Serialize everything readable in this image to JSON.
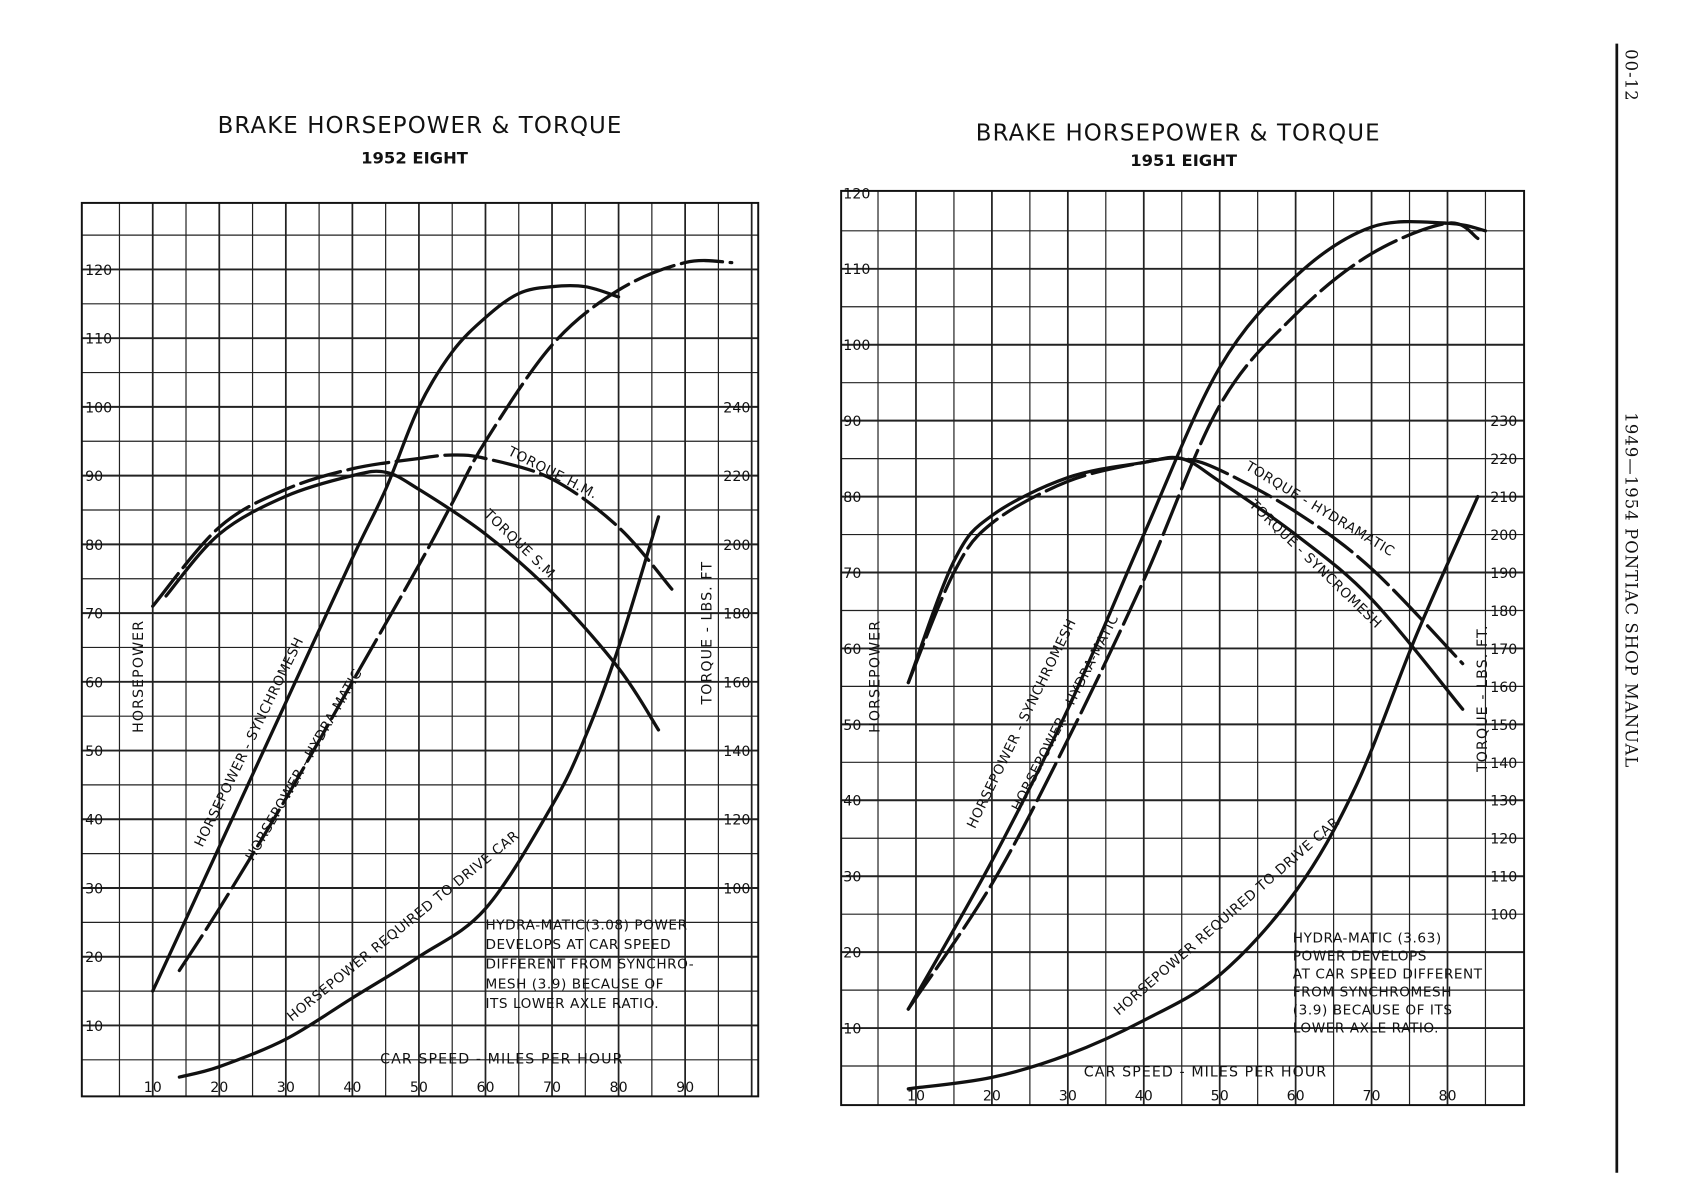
{
  "page": {
    "page_number": "00-12",
    "running_title": "1949—1954 PONTIAC SHOP MANUAL"
  },
  "chart_data": [
    {
      "type": "line",
      "title": "BRAKE HORSEPOWER & TORQUE",
      "subtitle": "1952 EIGHT",
      "xlabel": "CAR SPEED - MILES PER HOUR",
      "ylabel": "HORSEPOWER",
      "y2label": "TORQUE - LBS. FT",
      "xlim": [
        0,
        100
      ],
      "ylim": [
        0,
        130
      ],
      "xticks": [
        "10",
        "20",
        "30",
        "40",
        "50",
        "60",
        "70",
        "80",
        "90"
      ],
      "yticks": [
        "10",
        "20",
        "30",
        "40",
        "50",
        "60",
        "70",
        "80",
        "90",
        "100",
        "110",
        "120"
      ],
      "y2ticks": [
        "100",
        "120",
        "140",
        "160",
        "180",
        "200",
        "220",
        "240"
      ],
      "grid": true,
      "note": [
        "HYDRA-MATIC(3.08) POWER",
        "DEVELOPS AT CAR SPEED",
        "DIFFERENT FROM SYNCHRO-",
        "MESH (3.9) BECAUSE OF",
        "ITS  LOWER AXLE RATIO."
      ],
      "series": [
        {
          "name": "HORSEPOWER - SYNCHROMESH",
          "axis": "horsepower",
          "style": "solid",
          "x": [
            10,
            20,
            30,
            40,
            45,
            50,
            55,
            60,
            65,
            70,
            75,
            80
          ],
          "y": [
            15,
            36,
            57,
            78,
            88,
            100,
            108,
            113,
            116.5,
            117.5,
            117.5,
            116
          ]
        },
        {
          "name": "HORSEPOWER - HYDRA-MATIC",
          "axis": "horsepower",
          "style": "dashed",
          "x": [
            14,
            20,
            30,
            40,
            50,
            55,
            60,
            70,
            80,
            90,
            97
          ],
          "y": [
            18,
            27,
            43,
            60,
            77,
            86,
            95,
            109,
            117,
            121,
            121
          ]
        },
        {
          "name": "TORQUE H.M.",
          "axis": "torque",
          "style": "dashed",
          "x": [
            10,
            20,
            30,
            40,
            50,
            55,
            60,
            70,
            80,
            88
          ],
          "y": [
            182,
            205,
            216,
            222,
            225,
            226,
            225,
            219,
            205,
            187
          ]
        },
        {
          "name": "TORQUE S.M.",
          "axis": "torque",
          "style": "solid",
          "x": [
            12,
            20,
            30,
            40,
            45,
            50,
            60,
            70,
            80,
            86
          ],
          "y": [
            185,
            203,
            214,
            220,
            221,
            216,
            203,
            186,
            164,
            146
          ]
        },
        {
          "name": "HORSEPOWER REQUIRED TO DRIVE CAR",
          "axis": "horsepower",
          "style": "solid",
          "x": [
            14,
            20,
            30,
            40,
            50,
            60,
            70,
            75,
            80,
            86
          ],
          "y": [
            2.5,
            4,
            8,
            14,
            20,
            27,
            42,
            52,
            65,
            84
          ]
        }
      ]
    },
    {
      "type": "line",
      "title": "BRAKE HORSEPOWER & TORQUE",
      "subtitle": "1951 EIGHT",
      "xlabel": "CAR SPEED - MILES PER HOUR",
      "ylabel": "HORSEPOWER",
      "y2label": "TORQUE - LBS. FT.",
      "xlim": [
        0,
        90
      ],
      "ylim": [
        0,
        120
      ],
      "xticks": [
        "10",
        "20",
        "30",
        "40",
        "50",
        "60",
        "70",
        "80"
      ],
      "yticks": [
        "10",
        "20",
        "30",
        "40",
        "50",
        "60",
        "70",
        "80",
        "90",
        "100",
        "110",
        "120"
      ],
      "y2ticks": [
        "100",
        "110",
        "120",
        "130",
        "140",
        "150",
        "160",
        "170",
        "180",
        "190",
        "200",
        "210",
        "220",
        "230"
      ],
      "grid": true,
      "note": [
        "HYDRA-MATIC (3.63)",
        "POWER DEVELOPS",
        "AT CAR SPEED DIFFERENT",
        "FROM SYNCHROMESH",
        "(3.9) BECAUSE OF ITS",
        "LOWER  AXLE  RATIO."
      ],
      "series": [
        {
          "name": "HORSEPOWER - SYNCHROMESH",
          "axis": "horsepower",
          "style": "solid",
          "x": [
            9,
            20,
            30,
            40,
            50,
            60,
            70,
            80,
            85
          ],
          "y": [
            12.5,
            32,
            52,
            75,
            97,
            109,
            115.5,
            116,
            115
          ]
        },
        {
          "name": "HORSEPOWER - HYDRA-MATIC",
          "axis": "horsepower",
          "style": "dashed",
          "x": [
            9,
            20,
            30,
            40,
            50,
            60,
            70,
            80,
            84
          ],
          "y": [
            12.5,
            29,
            48,
            69,
            92,
            104,
            112,
            116,
            114
          ]
        },
        {
          "name": "TORQUE - HYDRAMATIC",
          "axis": "torque",
          "style": "dashed",
          "x": [
            9,
            15,
            20,
            30,
            40,
            45,
            50,
            60,
            70,
            82
          ],
          "y": [
            161,
            190,
            203,
            214,
            219,
            220,
            217,
            206,
            191,
            166
          ]
        },
        {
          "name": "TORQUE - SYNCROMESH",
          "axis": "torque",
          "style": "solid",
          "x": [
            9,
            15,
            20,
            30,
            40,
            45,
            50,
            60,
            70,
            82
          ],
          "y": [
            161,
            193,
            205,
            215,
            219,
            220,
            214,
            200,
            183,
            154
          ]
        },
        {
          "name": "HORSEPOWER REQUIRED TO DRIVE CAR",
          "axis": "horsepower",
          "style": "solid",
          "x": [
            9,
            20,
            30,
            40,
            50,
            60,
            68,
            76,
            84
          ],
          "y": [
            2,
            3.5,
            6.5,
            11,
            17,
            28,
            42,
            62,
            80
          ]
        }
      ]
    }
  ]
}
